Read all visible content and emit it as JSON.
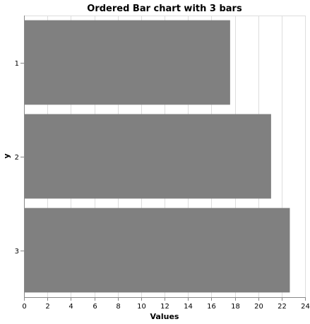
{
  "chart_data": {
    "type": "bar",
    "orientation": "horizontal",
    "title": "Ordered Bar chart with 3 bars",
    "xlabel": "Values",
    "ylabel": "y",
    "categories": [
      "1",
      "2",
      "3"
    ],
    "values": [
      17.6,
      21.1,
      22.7
    ],
    "xlim": [
      0,
      24
    ],
    "xticks": [
      0,
      2,
      4,
      6,
      8,
      10,
      12,
      14,
      16,
      18,
      20,
      22,
      24
    ],
    "grid": true,
    "bar_color": "#808080"
  }
}
